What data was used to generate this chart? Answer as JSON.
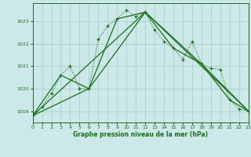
{
  "title": "Graphe pression niveau de la mer (hPa)",
  "background_color": "#cce8e8",
  "grid_color": "#aacfcf",
  "line_color": "#1a6e1a",
  "x_min": 0,
  "x_max": 23,
  "y_min": 1018.5,
  "y_max": 1023.8,
  "y_ticks": [
    1019,
    1020,
    1021,
    1022,
    1023
  ],
  "x_ticks": [
    0,
    1,
    2,
    3,
    4,
    5,
    6,
    7,
    8,
    9,
    10,
    11,
    12,
    13,
    14,
    15,
    16,
    17,
    18,
    19,
    20,
    21,
    22,
    23
  ],
  "series1_x": [
    0,
    1,
    2,
    3,
    4,
    5,
    6,
    7,
    8,
    9,
    10,
    11,
    12,
    13,
    14,
    15,
    16,
    17,
    18,
    19,
    20,
    21,
    22,
    23
  ],
  "series1_y": [
    1018.8,
    1019.2,
    1019.8,
    1020.6,
    1021.0,
    1020.0,
    1020.0,
    1022.2,
    1022.8,
    1023.1,
    1023.5,
    1023.2,
    1023.4,
    1022.6,
    1022.1,
    1021.8,
    1021.3,
    1022.1,
    1021.1,
    1020.9,
    1020.85,
    1019.5,
    1019.1,
    1019.0
  ],
  "series2_x": [
    0,
    3,
    6,
    9,
    12,
    15,
    18,
    21,
    23
  ],
  "series2_y": [
    1018.8,
    1020.6,
    1020.0,
    1023.1,
    1023.4,
    1021.8,
    1021.1,
    1019.5,
    1019.0
  ],
  "series3_x": [
    0,
    6,
    12,
    18,
    23
  ],
  "series3_y": [
    1018.8,
    1020.0,
    1023.4,
    1021.1,
    1019.0
  ],
  "series4_x": [
    0,
    12,
    23
  ],
  "series4_y": [
    1018.8,
    1023.4,
    1019.0
  ]
}
